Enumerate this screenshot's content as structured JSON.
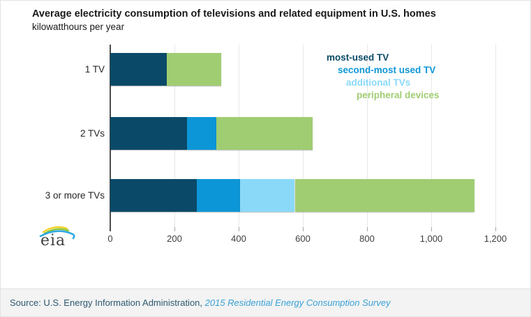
{
  "chart_data": {
    "type": "bar",
    "orientation": "horizontal",
    "stacked": true,
    "title": "Average electricity consumption of televisions and related equipment in U.S. homes",
    "subtitle": "kilowatthours per year",
    "categories": [
      "1 TV",
      "2 TVs",
      "3 or more TVs"
    ],
    "series": [
      {
        "name": "most-used TV",
        "color": "#0a4a68",
        "values": [
          175,
          240,
          270
        ]
      },
      {
        "name": "second-most used TV",
        "color": "#0d96d7",
        "values": [
          0,
          90,
          135
        ]
      },
      {
        "name": "additional TVs",
        "color": "#8ad9f8",
        "values": [
          0,
          0,
          170
        ]
      },
      {
        "name": "peripheral devices",
        "color": "#a0cd72",
        "values": [
          170,
          300,
          560
        ]
      }
    ],
    "totals": [
      345,
      630,
      1135
    ],
    "x_axis": {
      "min": 0,
      "max": 1200,
      "tick_interval": 200,
      "tick_labels": [
        "0",
        "200",
        "400",
        "600",
        "800",
        "1,000",
        "1,200"
      ]
    },
    "grid": true,
    "legend_position": "top-right"
  },
  "legend_title_colors": {
    "title": "#1a1a1a",
    "axis_text": "#3d3d3d"
  },
  "logo": {
    "text": "eia"
  },
  "footer": {
    "source_prefix": "Source: U.S. Energy Information Administration, ",
    "link_text": "2015 Residential Energy Consumption Survey",
    "text_color": "#2e5871",
    "link_color": "#39a0d8"
  }
}
